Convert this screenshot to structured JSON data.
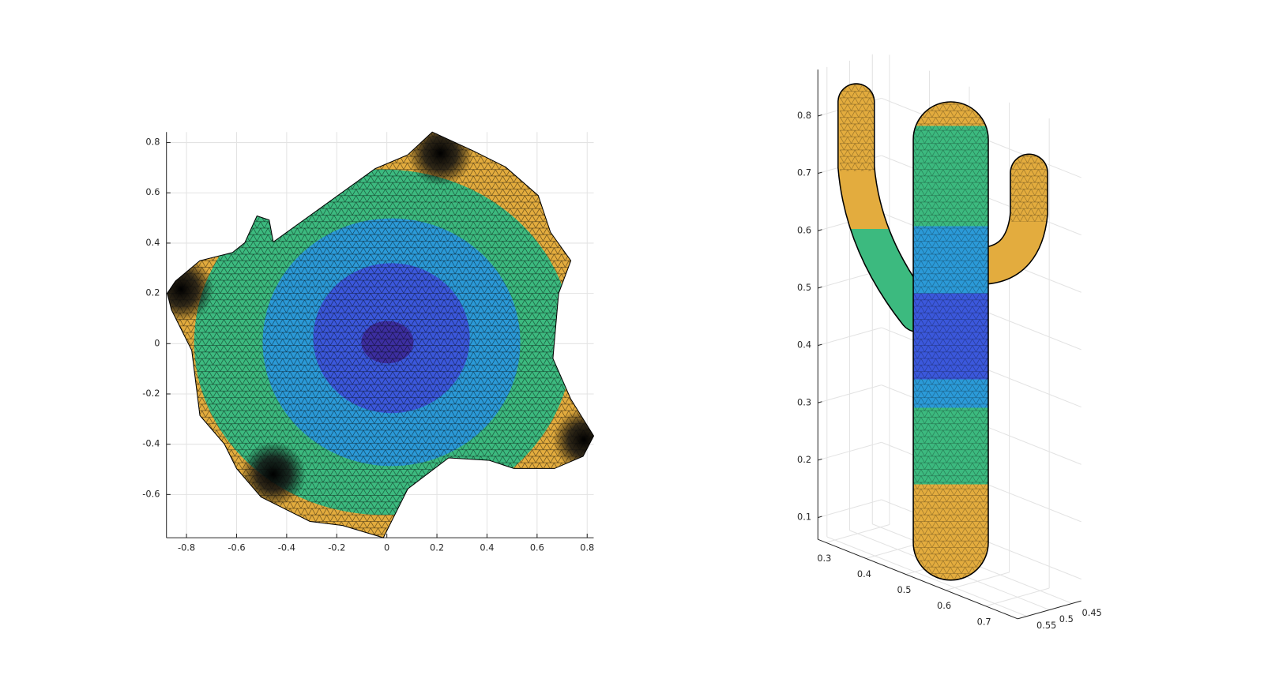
{
  "chart_data": [
    {
      "type": "mesh",
      "xlim": [
        -0.88,
        0.826
      ],
      "ylim": [
        -0.772,
        0.842
      ],
      "xticks": [
        -0.8,
        -0.6,
        -0.4,
        -0.2,
        0,
        0.2,
        0.4,
        0.6,
        0.8
      ],
      "yticks": [
        -0.6,
        -0.4,
        -0.2,
        0,
        0.2,
        0.4,
        0.6,
        0.8
      ],
      "grid": true
    },
    {
      "type": "mesh3d",
      "xlim": [
        0.28,
        0.78
      ],
      "ylim": [
        0.43,
        0.57
      ],
      "zlim": [
        0.062,
        0.881
      ],
      "xticks": [
        0.3,
        0.4,
        0.5,
        0.6,
        0.7
      ],
      "yticks": [
        0.45,
        0.5,
        0.55
      ],
      "zticks": [
        0.1,
        0.2,
        0.3,
        0.4,
        0.5,
        0.6,
        0.7,
        0.8
      ],
      "grid": true
    }
  ]
}
